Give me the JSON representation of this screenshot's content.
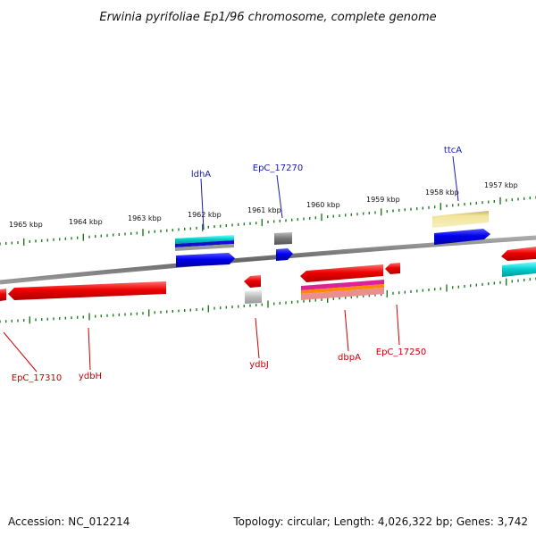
{
  "title": "Erwinia pyrifoliae Ep1/96 chromosome, complete genome",
  "footer": {
    "accession": "Accession: NC_012214",
    "info": "Topology: circular; Length: 4,026,322 bp; Genes: 3,742"
  },
  "scale": {
    "unit": "kbp",
    "ticks": [
      "1965 kbp",
      "1964 kbp",
      "1963 kbp",
      "1962 kbp",
      "1961 kbp",
      "1960 kbp",
      "1959 kbp",
      "1958 kbp",
      "1957 kbp"
    ]
  },
  "colors": {
    "backbone": "#777777",
    "forward_label": "#1a1aaa",
    "reverse_label": "#cc0000",
    "tick": "#1f7a1f",
    "gene_red": "#ee0000",
    "gene_blue": "#0000ee",
    "gene_cyan": "#00cccc",
    "gene_gray": "#888888",
    "gene_yellow": "#f2e59a",
    "gene_magenta": "#dd2299",
    "gene_orange": "#ff8800"
  },
  "forward_labels": [
    "ldhA",
    "EpC_17270",
    "ttcA"
  ],
  "reverse_labels": [
    "EpC_17310",
    "ydbH",
    "ydbJ",
    "dbpA",
    "EpC_17250"
  ]
}
